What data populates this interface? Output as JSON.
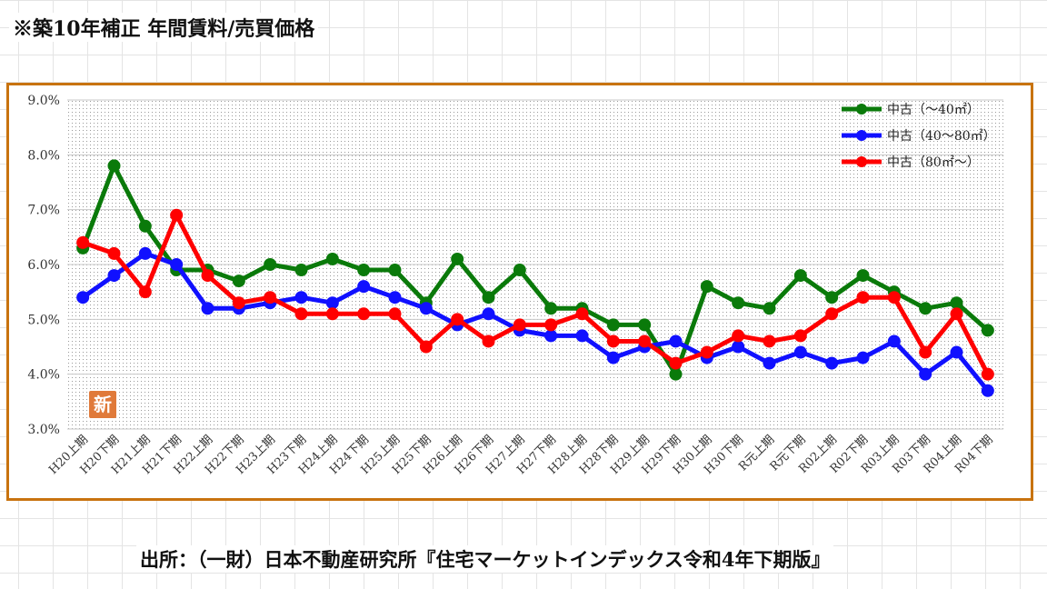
{
  "page": {
    "title": "※築10年補正 年間賃料/売買価格",
    "source": "出所：（一財）日本不動産研究所『住宅マーケットインデックス令和4年下期版』",
    "stamp": "新"
  },
  "colors": {
    "frame": "#c8730f",
    "stamp_bg": "#e07a3a"
  },
  "chart_data": {
    "type": "line",
    "title": "",
    "xlabel": "",
    "ylabel": "",
    "ylim": [
      3.0,
      9.0
    ],
    "yticks": [
      "3.0%",
      "4.0%",
      "5.0%",
      "6.0%",
      "7.0%",
      "8.0%",
      "9.0%"
    ],
    "grid": true,
    "legend_position": "top-right",
    "categories": [
      "H20上期",
      "H20下期",
      "H21上期",
      "H21下期",
      "H22上期",
      "H22下期",
      "H23上期",
      "H23下期",
      "H24上期",
      "H24下期",
      "H25上期",
      "H25下期",
      "H26上期",
      "H26下期",
      "H27上期",
      "H27下期",
      "H28上期",
      "H28下期",
      "H29上期",
      "H29下期",
      "H30上期",
      "H30下期",
      "R元上期",
      "R元下期",
      "R02上期",
      "R02下期",
      "R03上期",
      "R03下期",
      "R04上期",
      "R04下期"
    ],
    "series": [
      {
        "name": "中古（～40㎡）",
        "color": "#0a7a0a",
        "values": [
          6.3,
          7.8,
          6.7,
          5.9,
          5.9,
          5.7,
          6.0,
          5.9,
          6.1,
          5.9,
          5.9,
          5.3,
          6.1,
          5.4,
          5.9,
          5.2,
          5.2,
          4.9,
          4.9,
          4.0,
          5.6,
          5.3,
          5.2,
          5.8,
          5.4,
          5.8,
          5.5,
          5.2,
          5.3,
          4.8
        ]
      },
      {
        "name": "中古（40～80㎡）",
        "color": "#1010ff",
        "values": [
          5.4,
          5.8,
          6.2,
          6.0,
          5.2,
          5.2,
          5.3,
          5.4,
          5.3,
          5.6,
          5.4,
          5.2,
          4.9,
          5.1,
          4.8,
          4.7,
          4.7,
          4.3,
          4.5,
          4.6,
          4.3,
          4.5,
          4.2,
          4.4,
          4.2,
          4.3,
          4.6,
          4.0,
          4.4,
          3.7
        ]
      },
      {
        "name": "中古（80㎡～）",
        "color": "#ff0000",
        "values": [
          6.4,
          6.2,
          5.5,
          6.9,
          5.8,
          5.3,
          5.4,
          5.1,
          5.1,
          5.1,
          5.1,
          4.5,
          5.0,
          4.6,
          4.9,
          4.9,
          5.1,
          4.6,
          4.6,
          4.2,
          4.4,
          4.7,
          4.6,
          4.7,
          5.1,
          5.4,
          5.4,
          4.4,
          5.1,
          4.0
        ]
      }
    ]
  }
}
